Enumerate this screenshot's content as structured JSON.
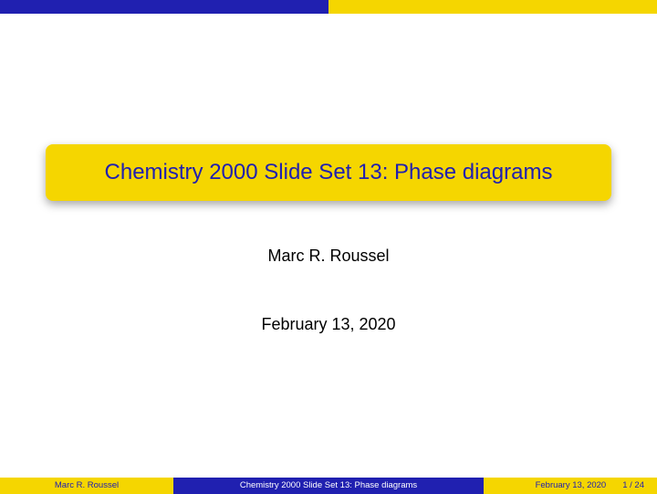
{
  "colors": {
    "blue": "#2020b0",
    "yellow": "#f5d600",
    "title_text": "#2020b0",
    "footer_yellow_text": "#2020b0",
    "footer_blue_text": "#ffffff"
  },
  "topbar": {
    "left_color": "#2020b0",
    "right_color": "#f5d600"
  },
  "title": {
    "text": "Chemistry 2000 Slide Set 13: Phase diagrams",
    "bg_color": "#f5d600",
    "text_color": "#2020b0",
    "fontsize": 24
  },
  "author": "Marc R. Roussel",
  "date": "February 13, 2020",
  "footer": {
    "author": {
      "text": "Marc R. Roussel",
      "bg": "#f5d600",
      "fg": "#2020b0"
    },
    "title": {
      "text": "Chemistry 2000 Slide Set 13: Phase diagrams",
      "bg": "#2020b0",
      "fg": "#ffffff"
    },
    "right": {
      "date": "February 13, 2020",
      "page": "1 / 24",
      "bg": "#f5d600",
      "fg": "#2020b0"
    }
  }
}
